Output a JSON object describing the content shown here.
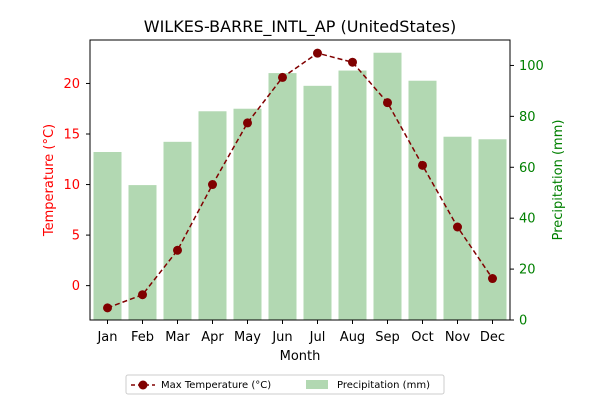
{
  "chart_data": {
    "type": "bar+line",
    "title": "WILKES-BARRE_INTL_AP (UnitedStates)",
    "xlabel": "Month",
    "categories": [
      "Jan",
      "Feb",
      "Mar",
      "Apr",
      "May",
      "Jun",
      "Jul",
      "Aug",
      "Sep",
      "Oct",
      "Nov",
      "Dec"
    ],
    "y_left": {
      "label": "Temperature (°C)",
      "lim": [
        -3.4,
        24.3
      ],
      "ticks": [
        0,
        5,
        10,
        15,
        20
      ],
      "color": "#ff0000"
    },
    "y_right": {
      "label": "Precipitation (mm)",
      "lim": [
        0,
        110
      ],
      "ticks": [
        0,
        20,
        40,
        60,
        80,
        100
      ],
      "color": "#008000"
    },
    "series": [
      {
        "name": "Max Temperature (°C)",
        "type": "line",
        "axis": "left",
        "color": "#800000",
        "values": [
          -2.2,
          -0.9,
          3.5,
          10.0,
          16.1,
          20.6,
          23.0,
          22.1,
          18.1,
          11.9,
          5.8,
          0.7
        ]
      },
      {
        "name": "Precipitation (mm)",
        "type": "bar",
        "axis": "right",
        "color": "#b2d8b2",
        "values": [
          66,
          53,
          70,
          82,
          83,
          97,
          92,
          98,
          105,
          94,
          72,
          71
        ]
      }
    ],
    "legend": "bottom-center",
    "grid": false
  }
}
